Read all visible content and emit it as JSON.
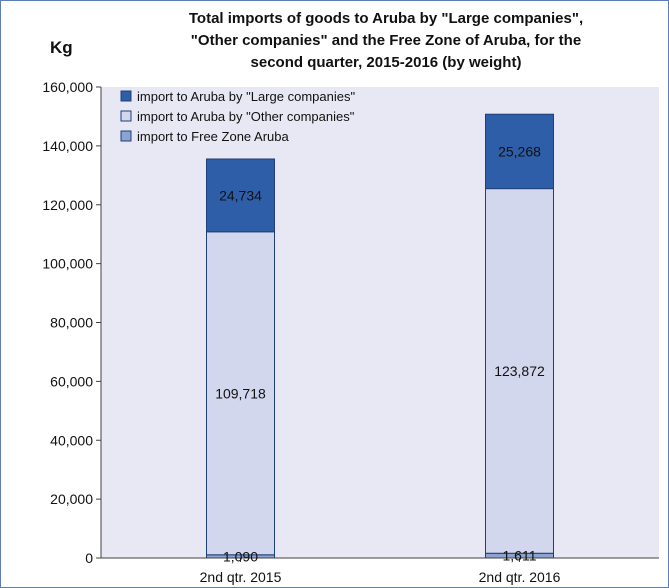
{
  "chart_data": {
    "type": "bar",
    "stacked": true,
    "title_lines": [
      "Total imports of goods to Aruba by \"Large companies\",",
      "\"Other companies\" and the Free Zone of Aruba, for the",
      "second quarter, 2015-2016 (by weight)"
    ],
    "ylabel": "Kg",
    "xlabel": "",
    "categories": [
      "2nd qtr. 2015",
      "2nd qtr. 2016"
    ],
    "ylim": [
      0,
      160000
    ],
    "yticks": [
      0,
      20000,
      40000,
      60000,
      80000,
      100000,
      120000,
      140000,
      160000
    ],
    "ytick_labels": [
      "0",
      "20,000",
      "40,000",
      "60,000",
      "80,000",
      "100,000",
      "120,000",
      "140,000",
      "160,000"
    ],
    "legend_position": "top-left",
    "grid": false,
    "plot_background": "#e8e8f5",
    "series": [
      {
        "name": "import to Free Zone Aruba",
        "values": [
          1090,
          1611
        ],
        "value_labels": [
          "1,090",
          "1,611"
        ],
        "color": "#8ba3cf"
      },
      {
        "name": "import to Aruba by \"Other companies\"",
        "values": [
          109718,
          123872
        ],
        "value_labels": [
          "109,718",
          "123,872"
        ],
        "color": "#d3d7ee"
      },
      {
        "name": "import to Aruba by \"Large companies\"",
        "values": [
          24734,
          25268
        ],
        "value_labels": [
          "24,734",
          "25,268"
        ],
        "color": "#2f5ea8"
      }
    ],
    "legend_order": [
      2,
      1,
      0
    ]
  }
}
